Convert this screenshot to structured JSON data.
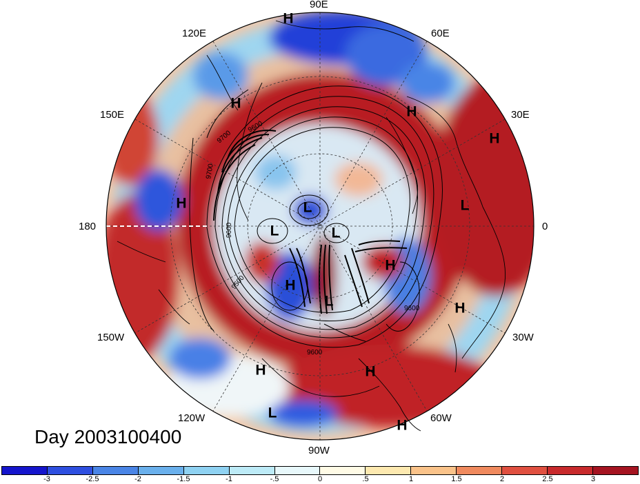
{
  "lon_labels": [
    "90E",
    "60E",
    "30E",
    "0",
    "30W",
    "60W",
    "90W",
    "120W",
    "150W",
    "180",
    "150E",
    "120E"
  ],
  "contour_labels": [
    "9700",
    "9600",
    "9500",
    "9600",
    "9600",
    "9600",
    "9700"
  ],
  "pressure_centers": [
    {
      "t": "H"
    },
    {
      "t": "H"
    },
    {
      "t": "H"
    },
    {
      "t": "H"
    },
    {
      "t": "H"
    },
    {
      "t": "L"
    },
    {
      "t": "L"
    },
    {
      "t": "L"
    },
    {
      "t": "L"
    },
    {
      "t": "H"
    },
    {
      "t": "H"
    },
    {
      "t": "L"
    },
    {
      "t": "H"
    },
    {
      "t": "H"
    },
    {
      "t": "H"
    },
    {
      "t": "H"
    },
    {
      "t": "L"
    },
    {
      "t": "H"
    }
  ],
  "title": "Day 2003100400",
  "colorbar": {
    "colors": [
      "#1515cc",
      "#2e4fe0",
      "#4a85e6",
      "#6ab0ec",
      "#8fd2f2",
      "#bdebf7",
      "#e8f8fb",
      "#fffbe6",
      "#fde9b0",
      "#fac38a",
      "#f08a5e",
      "#e05040",
      "#c82a2c",
      "#a51421"
    ],
    "labels": [
      "-3",
      "-2.5",
      "-2",
      "-1.5",
      "-1",
      "-.5",
      "0",
      ".5",
      "1",
      "1.5",
      "2",
      "2.5",
      "3"
    ]
  }
}
